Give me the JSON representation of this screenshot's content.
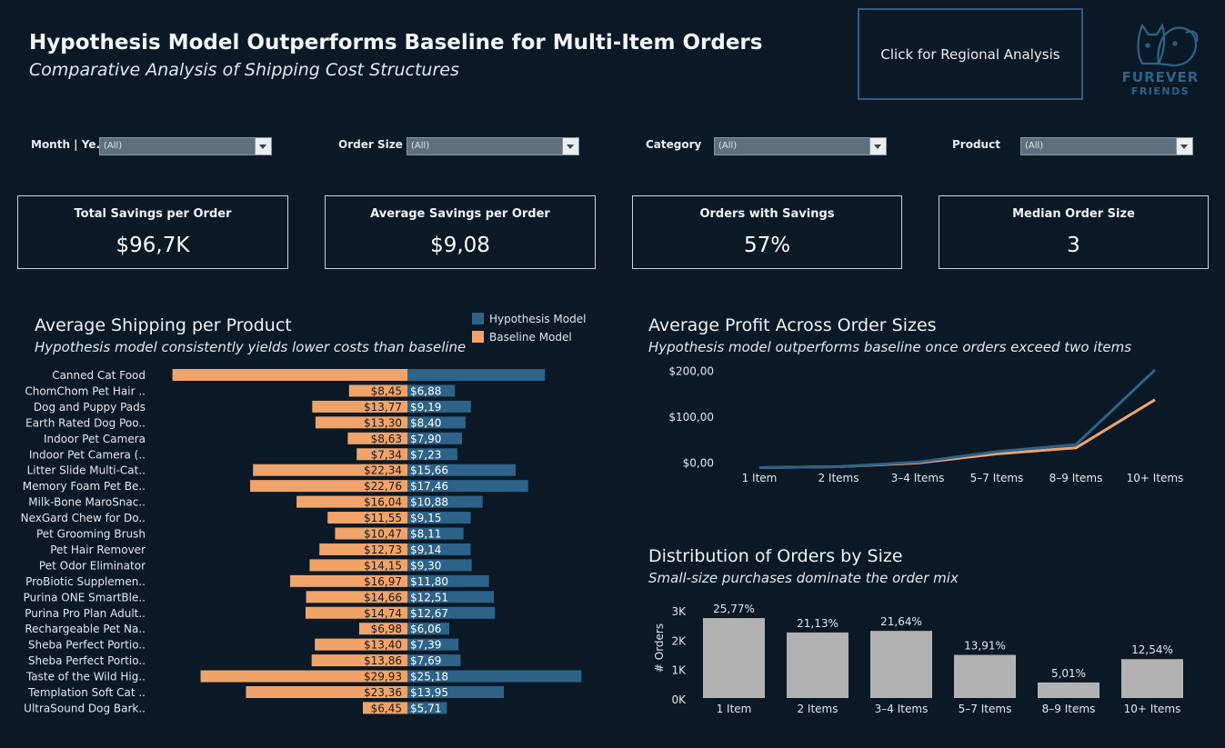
{
  "header": {
    "title": "Hypothesis Model Outperforms Baseline for Multi-Item Orders",
    "subtitle": "Comparative Analysis of Shipping Cost Structures",
    "regional_button": "Click for Regional Analysis",
    "logo_line1": "FUREVER",
    "logo_line2": "FRIENDS"
  },
  "filters": [
    {
      "label": "Month | Ye..",
      "value": "(All)"
    },
    {
      "label": "Order Size",
      "value": "(All)"
    },
    {
      "label": "Category",
      "value": "(All)"
    },
    {
      "label": "Product",
      "value": "(All)"
    }
  ],
  "kpis": [
    {
      "label": "Total Savings per Order",
      "value": "$96,7K"
    },
    {
      "label": "Average Savings per Order",
      "value": "$9,08"
    },
    {
      "label": "Orders with Savings",
      "value": "57%"
    },
    {
      "label": "Median Order Size",
      "value": "3"
    }
  ],
  "colors": {
    "hypothesis": "#2e6389",
    "baseline": "#f0a46a",
    "distribution": "#b2b2b2",
    "background": "#0b1826"
  },
  "chart_data": [
    {
      "type": "bar",
      "title": "Average Shipping per Product",
      "subtitle": "Hypothesis model consistently yields lower costs than baseline",
      "legend": [
        "Hypothesis Model",
        "Baseline Model"
      ],
      "legend_position": "top-right",
      "categories": [
        "Canned Cat Food",
        "ChomChom Pet Hair ..",
        "Dog and Puppy Pads",
        "Earth Rated Dog Poo..",
        "Indoor Pet Camera",
        "Indoor Pet Camera (..",
        "Litter Slide Multi-Cat..",
        "Memory Foam Pet Be..",
        "Milk-Bone MaroSnac..",
        "NexGard Chew for Do..",
        "Pet Grooming Brush",
        "Pet Hair Remover",
        "Pet Odor Eliminator",
        "ProBiotic Supplemen..",
        "Purina ONE SmartBle..",
        "Purina Pro Plan Adult..",
        "Rechargeable Pet Na..",
        "Sheba Perfect Portio..",
        "Sheba Perfect Portio..",
        "Taste of the Wild Hig..",
        "Templation Soft Cat ..",
        "UltraSound Dog Bark.."
      ],
      "series": [
        {
          "name": "Baseline Model",
          "values": [
            34.0,
            8.45,
            13.77,
            13.3,
            8.63,
            7.34,
            22.34,
            22.76,
            16.04,
            11.55,
            10.47,
            12.73,
            14.15,
            16.97,
            14.66,
            14.74,
            6.98,
            13.4,
            13.86,
            29.93,
            23.36,
            6.45
          ],
          "labels": [
            "",
            "$8,45",
            "$13,77",
            "$13,30",
            "$8,63",
            "$7,34",
            "$22,34",
            "$22,76",
            "$16,04",
            "$11,55",
            "$10,47",
            "$12,73",
            "$14,15",
            "$16,97",
            "$14,66",
            "$14,74",
            "$6,98",
            "$13,40",
            "$13,86",
            "$29,93",
            "$23,36",
            "$6,45"
          ]
        },
        {
          "name": "Hypothesis Model",
          "values": [
            19.9,
            6.88,
            9.19,
            8.4,
            7.9,
            7.23,
            15.66,
            17.46,
            10.88,
            9.15,
            8.11,
            9.14,
            9.3,
            11.8,
            12.51,
            12.67,
            6.06,
            7.39,
            7.69,
            25.18,
            13.95,
            5.71
          ],
          "labels": [
            "",
            "$6,88",
            "$9,19",
            "$8,40",
            "$7,90",
            "$7,23",
            "$15,66",
            "$17,46",
            "$10,88",
            "$9,15",
            "$8,11",
            "$9,14",
            "$9,30",
            "$11,80",
            "$12,51",
            "$12,67",
            "$6,06",
            "$7,39",
            "$7,69",
            "$25,18",
            "$13,95",
            "$5,71"
          ]
        }
      ]
    },
    {
      "type": "line",
      "title": "Average Profit Across Order Sizes",
      "subtitle": "Hypothesis model outperforms baseline once orders exceed two items",
      "categories": [
        "1 Item",
        "2 Items",
        "3–4 Items",
        "5–7 Items",
        "8–9 Items",
        "10+ Items"
      ],
      "y_ticks": [
        "$200,00",
        "$100,00",
        "$0,00"
      ],
      "y_tick_values": [
        200,
        100,
        0
      ],
      "ylim": [
        -15,
        215
      ],
      "series": [
        {
          "name": "Hypothesis Model",
          "values": [
            -10,
            -8,
            2,
            25,
            40,
            203
          ]
        },
        {
          "name": "Baseline Model",
          "values": [
            -10,
            -8,
            0,
            20,
            33,
            138
          ]
        }
      ]
    },
    {
      "type": "bar",
      "title": "Distribution of Orders by Size",
      "subtitle": "Small-size purchases dominate the order mix",
      "ylabel": "# Orders",
      "categories": [
        "1 Item",
        "2 Items",
        "3–4 Items",
        "5–7 Items",
        "8–9 Items",
        "10+ Items"
      ],
      "values": [
        2720,
        2230,
        2284,
        1468,
        529,
        1323
      ],
      "data_labels": [
        "25,77%",
        "21,13%",
        "21,64%",
        "13,91%",
        "5,01%",
        "12,54%"
      ],
      "y_ticks": [
        "3K",
        "2K",
        "1K",
        "0K"
      ],
      "y_tick_values": [
        3000,
        2000,
        1000,
        0
      ],
      "ylim": [
        0,
        3000
      ]
    }
  ]
}
